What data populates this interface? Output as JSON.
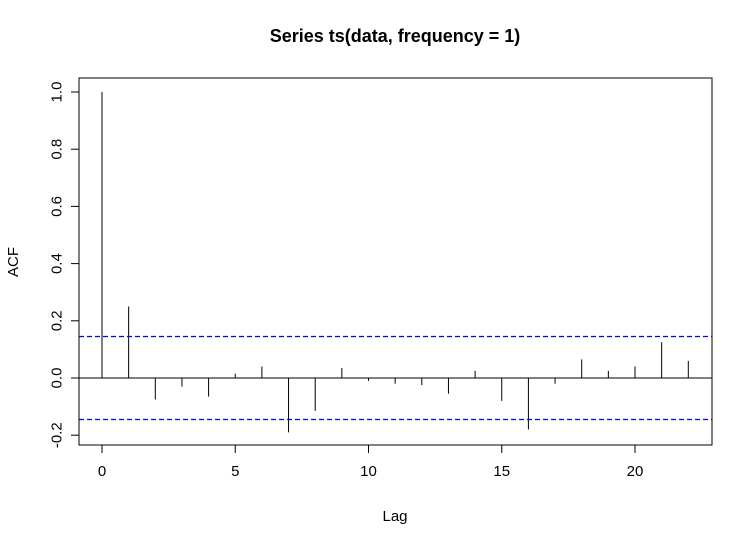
{
  "chart_data": {
    "type": "bar",
    "title": "Series  ts(data, frequency = 1)",
    "xlabel": "Lag",
    "ylabel": "ACF",
    "xlim": [
      -0.9,
      23
    ],
    "ylim": [
      -0.24,
      1.0
    ],
    "x_ticks": [
      0,
      5,
      10,
      15,
      20
    ],
    "x_tick_labels": [
      "0",
      "5",
      "10",
      "15",
      "20"
    ],
    "y_ticks": [
      -0.2,
      0.0,
      0.2,
      0.4,
      0.6,
      0.8,
      1.0
    ],
    "y_tick_labels": [
      "-0.2",
      "0.0",
      "0.2",
      "0.4",
      "0.6",
      "0.8",
      "1.0"
    ],
    "lags": [
      0,
      1,
      2,
      3,
      4,
      5,
      6,
      7,
      8,
      9,
      10,
      11,
      12,
      13,
      14,
      15,
      16,
      17,
      18,
      19,
      20,
      21,
      22
    ],
    "acf": [
      1.0,
      0.25,
      -0.075,
      -0.03,
      -0.065,
      0.015,
      0.04,
      -0.19,
      -0.115,
      0.035,
      -0.01,
      -0.02,
      -0.025,
      -0.055,
      0.025,
      -0.08,
      -0.18,
      -0.02,
      0.065,
      0.025,
      0.04,
      0.125,
      0.06
    ],
    "ci_upper": 0.145,
    "ci_lower": -0.145,
    "ci_color": "#0000ff",
    "grid": false,
    "legend": "none"
  }
}
